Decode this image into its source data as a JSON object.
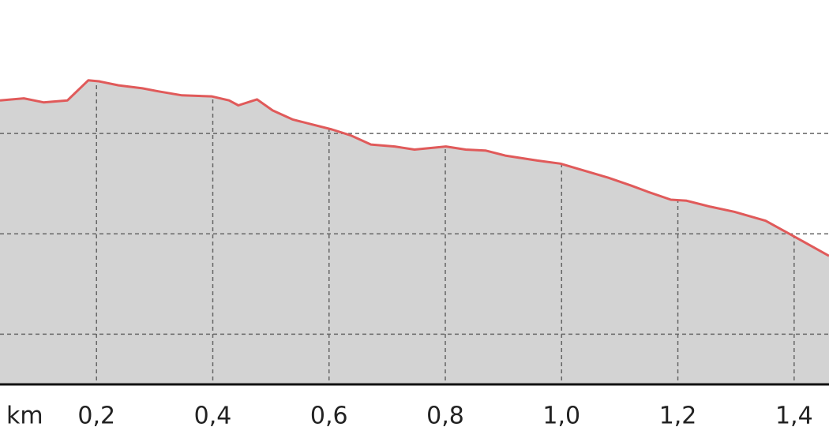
{
  "chart_data": {
    "type": "area",
    "xlabel": "km",
    "x": [
      0.034,
      0.075,
      0.109,
      0.15,
      0.186,
      0.204,
      0.238,
      0.279,
      0.306,
      0.347,
      0.398,
      0.428,
      0.444,
      0.476,
      0.503,
      0.537,
      0.571,
      0.605,
      0.638,
      0.672,
      0.713,
      0.747,
      0.801,
      0.835,
      0.869,
      0.903,
      0.958,
      0.998,
      1.039,
      1.08,
      1.12,
      1.148,
      1.188,
      1.215,
      1.256,
      1.297,
      1.351,
      1.392,
      1.46
    ],
    "series": [
      {
        "color": "#e05a5a",
        "fill": "#d3d3d3",
        "values": [
          28.3,
          28.5,
          28.1,
          28.3,
          30.3,
          30.2,
          29.8,
          29.5,
          29.2,
          28.8,
          28.7,
          28.3,
          27.8,
          28.4,
          27.3,
          26.4,
          25.9,
          25.4,
          24.8,
          23.9,
          23.7,
          23.4,
          23.7,
          23.4,
          23.3,
          22.8,
          22.3,
          22.0,
          21.3,
          20.6,
          19.8,
          19.2,
          18.4,
          18.3,
          17.7,
          17.2,
          16.3,
          15.0,
          12.8
        ]
      }
    ],
    "xlim": [
      0.034,
      1.46
    ],
    "ylim": [
      0,
      38.3
    ],
    "xticks": [
      {
        "value": 0.2,
        "label": "0,2"
      },
      {
        "value": 0.4,
        "label": "0,4"
      },
      {
        "value": 0.6,
        "label": "0,6"
      },
      {
        "value": 0.8,
        "label": "0,8"
      },
      {
        "value": 1.0,
        "label": "1,0"
      },
      {
        "value": 1.2,
        "label": "1,2"
      },
      {
        "value": 1.4,
        "label": "1,4"
      }
    ],
    "yticks": [
      5,
      15,
      25
    ],
    "grid": true
  }
}
